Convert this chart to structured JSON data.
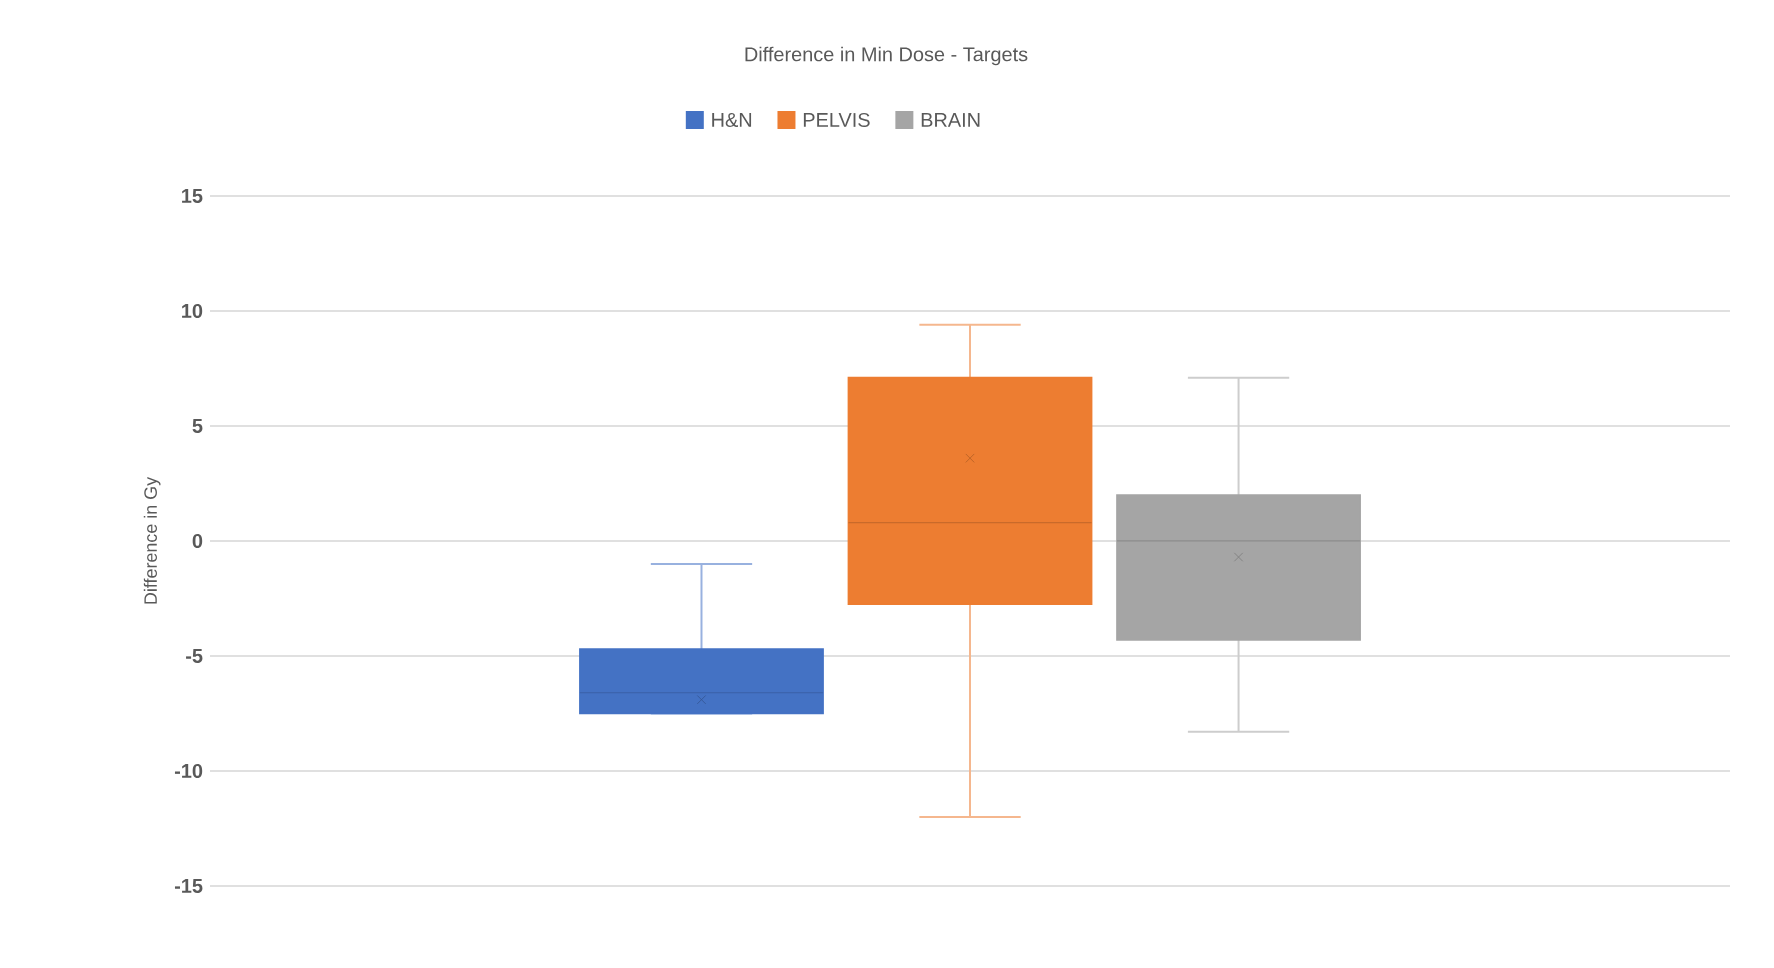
{
  "chart_data": {
    "type": "box",
    "title": "Difference in Min Dose - Targets",
    "ylabel": "Difference in Gy",
    "categories": [
      null
    ],
    "ylim": [
      -15,
      15
    ],
    "yticks": [
      -15,
      -10,
      -5,
      0,
      5,
      10,
      15
    ],
    "grid": "y",
    "legend": "top",
    "marker": "cross",
    "series": [
      {
        "name": "H&N",
        "color": "#4472c4",
        "boxes": [
          {
            "low": -7.5,
            "q1": -7.5,
            "median": -6.6,
            "q3": -4.7,
            "high": -1.0,
            "mean": -6.9
          }
        ]
      },
      {
        "name": "PELVIS",
        "color": "#ed7d31",
        "boxes": [
          {
            "low": -12.0,
            "q1": -2.75,
            "median": 0.8,
            "q3": 7.1,
            "high": 9.4,
            "mean": 3.6
          }
        ]
      },
      {
        "name": "BRAIN",
        "color": "#a5a5a5",
        "boxes": [
          {
            "low": -8.3,
            "q1": -4.3,
            "median": 0.0,
            "q3": 2.0,
            "high": 7.1,
            "mean": -0.7
          }
        ]
      }
    ]
  }
}
